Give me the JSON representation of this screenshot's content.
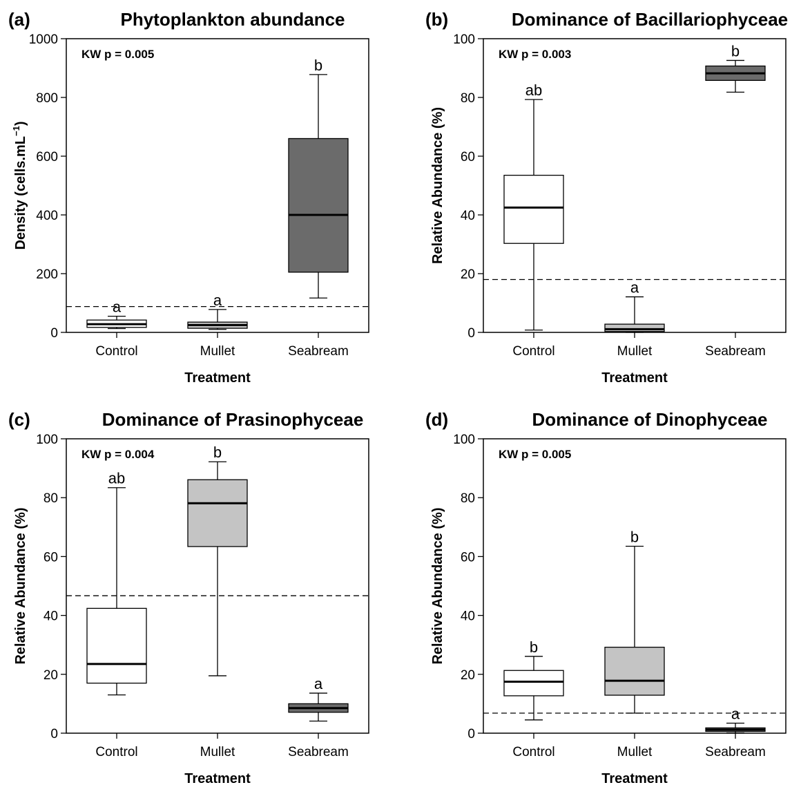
{
  "colors": {
    "Control": "#ffffff",
    "Mullet": "#c4c4c4",
    "Seabream": "#6b6b6b",
    "axis": "#000000"
  },
  "chart_data": [
    {
      "type": "box",
      "letter": "(a)",
      "title": "Phytoplankton abundance",
      "ylabel": "Density (cells.mL",
      "ylabel_sup": "−1",
      "ylabel_close": ")",
      "xlabel": "Treatment",
      "ylim": [
        0,
        1000
      ],
      "yticks": [
        0,
        200,
        400,
        600,
        800,
        1000
      ],
      "annotation": "KW p = 0.005",
      "reference_line": 88,
      "categories": [
        "Control",
        "Mullet",
        "Seabream"
      ],
      "boxes": [
        {
          "category": "Control",
          "min": 13,
          "q1": 17,
          "median": 28,
          "q3": 42,
          "max": 55,
          "sig": "a"
        },
        {
          "category": "Mullet",
          "min": 10,
          "q1": 14,
          "median": 25,
          "q3": 35,
          "max": 78,
          "sig": "a"
        },
        {
          "category": "Seabream",
          "min": 117,
          "q1": 205,
          "median": 400,
          "q3": 660,
          "max": 878,
          "sig": "b"
        }
      ]
    },
    {
      "type": "box",
      "letter": "(b)",
      "title": "Dominance of Bacillariophyceae",
      "ylabel": "Relative Abundance (%)",
      "xlabel": "Treatment",
      "ylim": [
        0,
        100
      ],
      "yticks": [
        0,
        20,
        40,
        60,
        80,
        100
      ],
      "annotation": "KW p = 0.003",
      "reference_line": 18,
      "categories": [
        "Control",
        "Mullet",
        "Seabream"
      ],
      "boxes": [
        {
          "category": "Control",
          "min": 0.8,
          "q1": 30.3,
          "median": 42.5,
          "q3": 53.5,
          "max": 79.3,
          "sig": "ab"
        },
        {
          "category": "Mullet",
          "min": 0,
          "q1": 0.3,
          "median": 1.1,
          "q3": 2.8,
          "max": 12.1,
          "sig": "a"
        },
        {
          "category": "Seabream",
          "min": 81.8,
          "q1": 85.8,
          "median": 88.2,
          "q3": 90.7,
          "max": 92.6,
          "sig": "b"
        }
      ]
    },
    {
      "type": "box",
      "letter": "(c)",
      "title": "Dominance of Prasinophyceae",
      "ylabel": "Relative Abundance (%)",
      "xlabel": "Treatment",
      "ylim": [
        0,
        100
      ],
      "yticks": [
        0,
        20,
        40,
        60,
        80,
        100
      ],
      "annotation": "KW p = 0.004",
      "reference_line": 46.7,
      "categories": [
        "Control",
        "Mullet",
        "Seabream"
      ],
      "boxes": [
        {
          "category": "Control",
          "min": 13,
          "q1": 17,
          "median": 23.5,
          "q3": 42.4,
          "max": 83.4,
          "sig": "ab"
        },
        {
          "category": "Mullet",
          "min": 19.5,
          "q1": 63.4,
          "median": 78.1,
          "q3": 86.1,
          "max": 92.2,
          "sig": "b"
        },
        {
          "category": "Seabream",
          "min": 4.1,
          "q1": 7.1,
          "median": 8.5,
          "q3": 10,
          "max": 13.6,
          "sig": "a"
        }
      ]
    },
    {
      "type": "box",
      "letter": "(d)",
      "title": "Dominance of Dinophyceae",
      "ylabel": "Relative Abundance (%)",
      "xlabel": "Treatment",
      "ylim": [
        0,
        100
      ],
      "yticks": [
        0,
        20,
        40,
        60,
        80,
        100
      ],
      "annotation": "KW p = 0.005",
      "reference_line": 6.8,
      "categories": [
        "Control",
        "Mullet",
        "Seabream"
      ],
      "boxes": [
        {
          "category": "Control",
          "min": 4.5,
          "q1": 12.7,
          "median": 17.5,
          "q3": 21.3,
          "max": 26.1,
          "sig": "b"
        },
        {
          "category": "Mullet",
          "min": 6.8,
          "q1": 12.9,
          "median": 17.8,
          "q3": 29.2,
          "max": 63.5,
          "sig": "b"
        },
        {
          "category": "Seabream",
          "min": 0.1,
          "q1": 0.6,
          "median": 1.2,
          "q3": 1.8,
          "max": 3.4,
          "sig": "a"
        }
      ]
    }
  ]
}
